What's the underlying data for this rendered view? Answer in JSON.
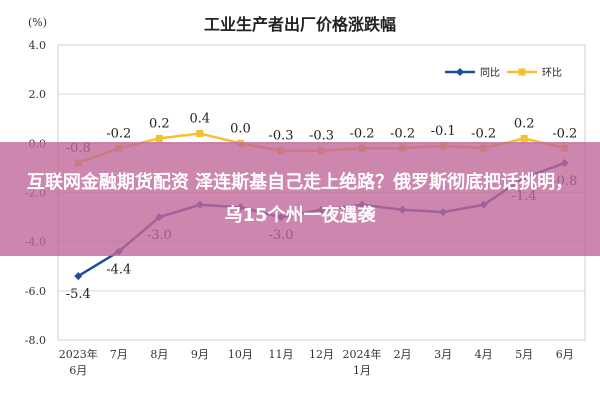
{
  "chart_data": {
    "type": "line",
    "title": "工业生产者出厂价格涨跌幅",
    "unit_label": "(%)",
    "ylim": [
      -8.0,
      4.0
    ],
    "y_ticks": [
      "4.0",
      "2.0",
      "0.0",
      "-2.0",
      "-4.0",
      "-6.0",
      "-8.0"
    ],
    "y_tick_values": [
      4,
      2,
      0,
      -2,
      -4,
      -6,
      -8
    ],
    "categories": [
      {
        "line1": "2023年",
        "line2": "6月"
      },
      {
        "line1": "7月",
        "line2": ""
      },
      {
        "line1": "8月",
        "line2": ""
      },
      {
        "line1": "9月",
        "line2": ""
      },
      {
        "line1": "10月",
        "line2": ""
      },
      {
        "line1": "11月",
        "line2": ""
      },
      {
        "line1": "12月",
        "line2": ""
      },
      {
        "line1": "2024年",
        "line2": "1月"
      },
      {
        "line1": "2月",
        "line2": ""
      },
      {
        "line1": "3月",
        "line2": ""
      },
      {
        "line1": "4月",
        "line2": ""
      },
      {
        "line1": "5月",
        "line2": ""
      },
      {
        "line1": "6月",
        "line2": ""
      }
    ],
    "grid": true,
    "legend_position": "top-right",
    "series": [
      {
        "name": "同比",
        "color": "#1f4e9c",
        "values": [
          -5.4,
          -4.4,
          -3.0,
          -2.5,
          -2.6,
          -3.0,
          -2.7,
          -2.5,
          -2.7,
          -2.8,
          -2.5,
          -1.4,
          -0.8
        ],
        "labels": [
          "-5.4",
          "-4.4",
          "-3.0",
          "",
          "",
          "-3.0",
          "",
          "",
          "",
          "",
          "",
          "-1.4",
          "-0.8"
        ]
      },
      {
        "name": "环比",
        "color": "#f2c232",
        "values": [
          -0.8,
          -0.2,
          0.2,
          0.4,
          0.0,
          -0.3,
          -0.3,
          -0.2,
          -0.2,
          -0.1,
          -0.2,
          0.2,
          -0.2
        ],
        "labels": [
          "-0.8",
          "-0.2",
          "0.2",
          "0.4",
          "0.0",
          "-0.3",
          "-0.3",
          "-0.2",
          "-0.2",
          "-0.1",
          "-0.2",
          "0.2",
          "-0.2"
        ]
      }
    ]
  },
  "banner": {
    "text": "互联网金融期货配资 泽连斯基自己走上绝路？俄罗斯彻底把话挑明，乌15个州一夜遇袭"
  }
}
